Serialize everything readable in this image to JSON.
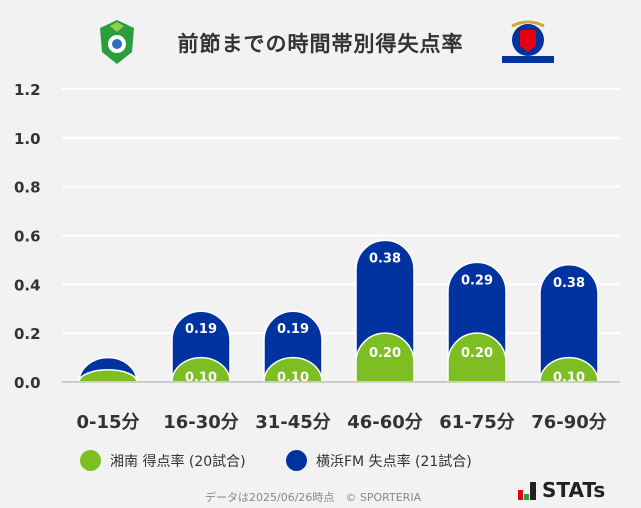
{
  "chart_data": {
    "type": "bar",
    "stacked": true,
    "title": "前節までの時間帯別得失点率",
    "categories": [
      "0-15分",
      "16-30分",
      "31-45分",
      "46-60分",
      "61-75分",
      "76-90分"
    ],
    "series": [
      {
        "name": "湘南 得点率 (20試合)",
        "color": "#7dbe23",
        "values": [
          0.05,
          0.1,
          0.1,
          0.2,
          0.2,
          0.1
        ],
        "labels": [
          "",
          "0.10",
          "0.10",
          "0.20",
          "0.20",
          "0.10"
        ]
      },
      {
        "name": "横浜FM 失点率 (21試合)",
        "color": "#0033a0",
        "values": [
          0.05,
          0.19,
          0.19,
          0.38,
          0.29,
          0.38
        ],
        "labels": [
          "",
          "0.19",
          "0.19",
          "0.38",
          "0.29",
          "0.38"
        ]
      }
    ],
    "yticks": [
      "0.0",
      "0.2",
      "0.4",
      "0.6",
      "0.8",
      "1.0",
      "1.2"
    ],
    "ylim": [
      0,
      1.2
    ],
    "grid": true,
    "legend": "bottom"
  },
  "footer": "データは2025/06/26時点　© SPORTERIA",
  "brand": "STATs",
  "logos": {
    "left": "湘南ベルマーレ emblem",
    "right": "Yokohama F·Marinos"
  }
}
